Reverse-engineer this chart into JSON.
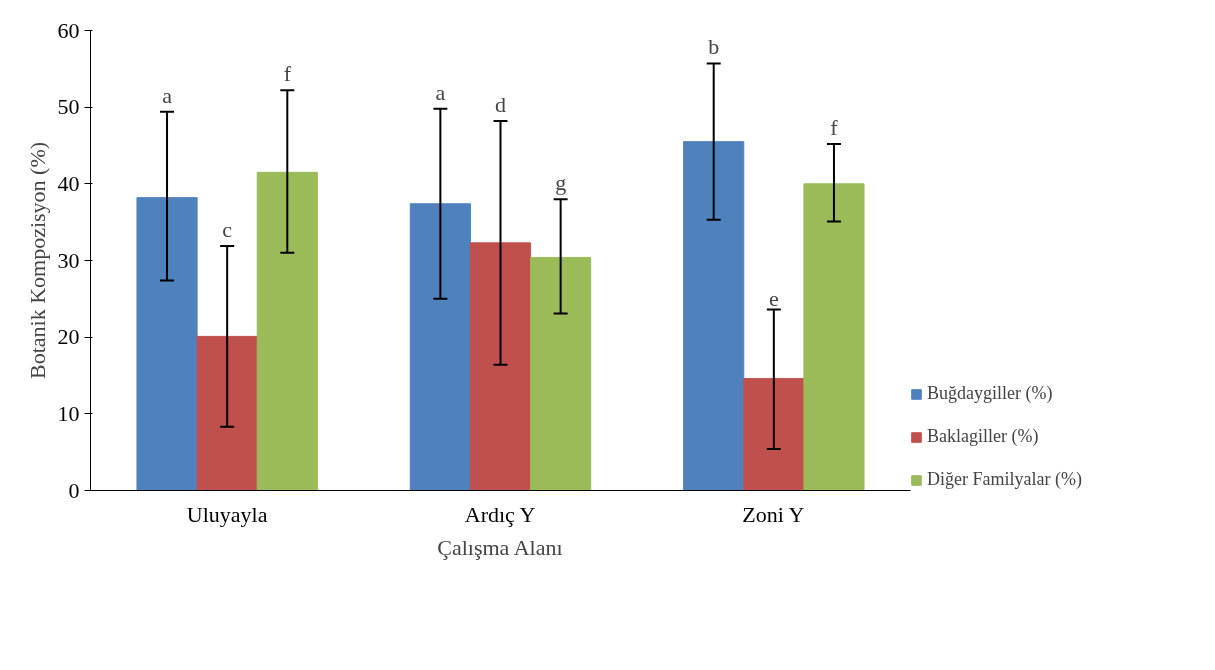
{
  "chart_data": {
    "type": "bar",
    "xlabel": "Çalışma Alanı",
    "ylabel": "Botanik Kompozisyon (%)",
    "categories": [
      "Uluyayla",
      "Ardıç Y",
      "Zoni Y"
    ],
    "series": [
      {
        "name": "Buğdaygiller (%)",
        "color": "#4f81bd",
        "values": [
          38.2,
          37.4,
          45.5
        ],
        "errors": [
          [
            27.4,
            49.4
          ],
          [
            25.0,
            49.8
          ],
          [
            35.3,
            55.7
          ]
        ]
      },
      {
        "name": "Baklagiller (%)",
        "color": "#c0504d",
        "values": [
          20.1,
          32.3,
          14.6
        ],
        "errors": [
          [
            8.3,
            31.9
          ],
          [
            16.4,
            48.2
          ],
          [
            5.4,
            23.6
          ]
        ]
      },
      {
        "name": "Diğer Familyalar (%)",
        "color": "#9bbb59",
        "values": [
          41.5,
          30.4,
          40.0
        ],
        "errors": [
          [
            31.0,
            52.2
          ],
          [
            23.1,
            38.0
          ],
          [
            35.1,
            45.2
          ]
        ]
      }
    ],
    "ylim": [
      0,
      60
    ],
    "yticks": [
      0,
      10,
      20,
      30,
      40,
      50,
      60
    ],
    "grid": false,
    "legend": "bottom right",
    "annotations": [
      "a",
      "c",
      "f",
      "a",
      "d",
      "g",
      "b",
      "e",
      "f"
    ]
  }
}
